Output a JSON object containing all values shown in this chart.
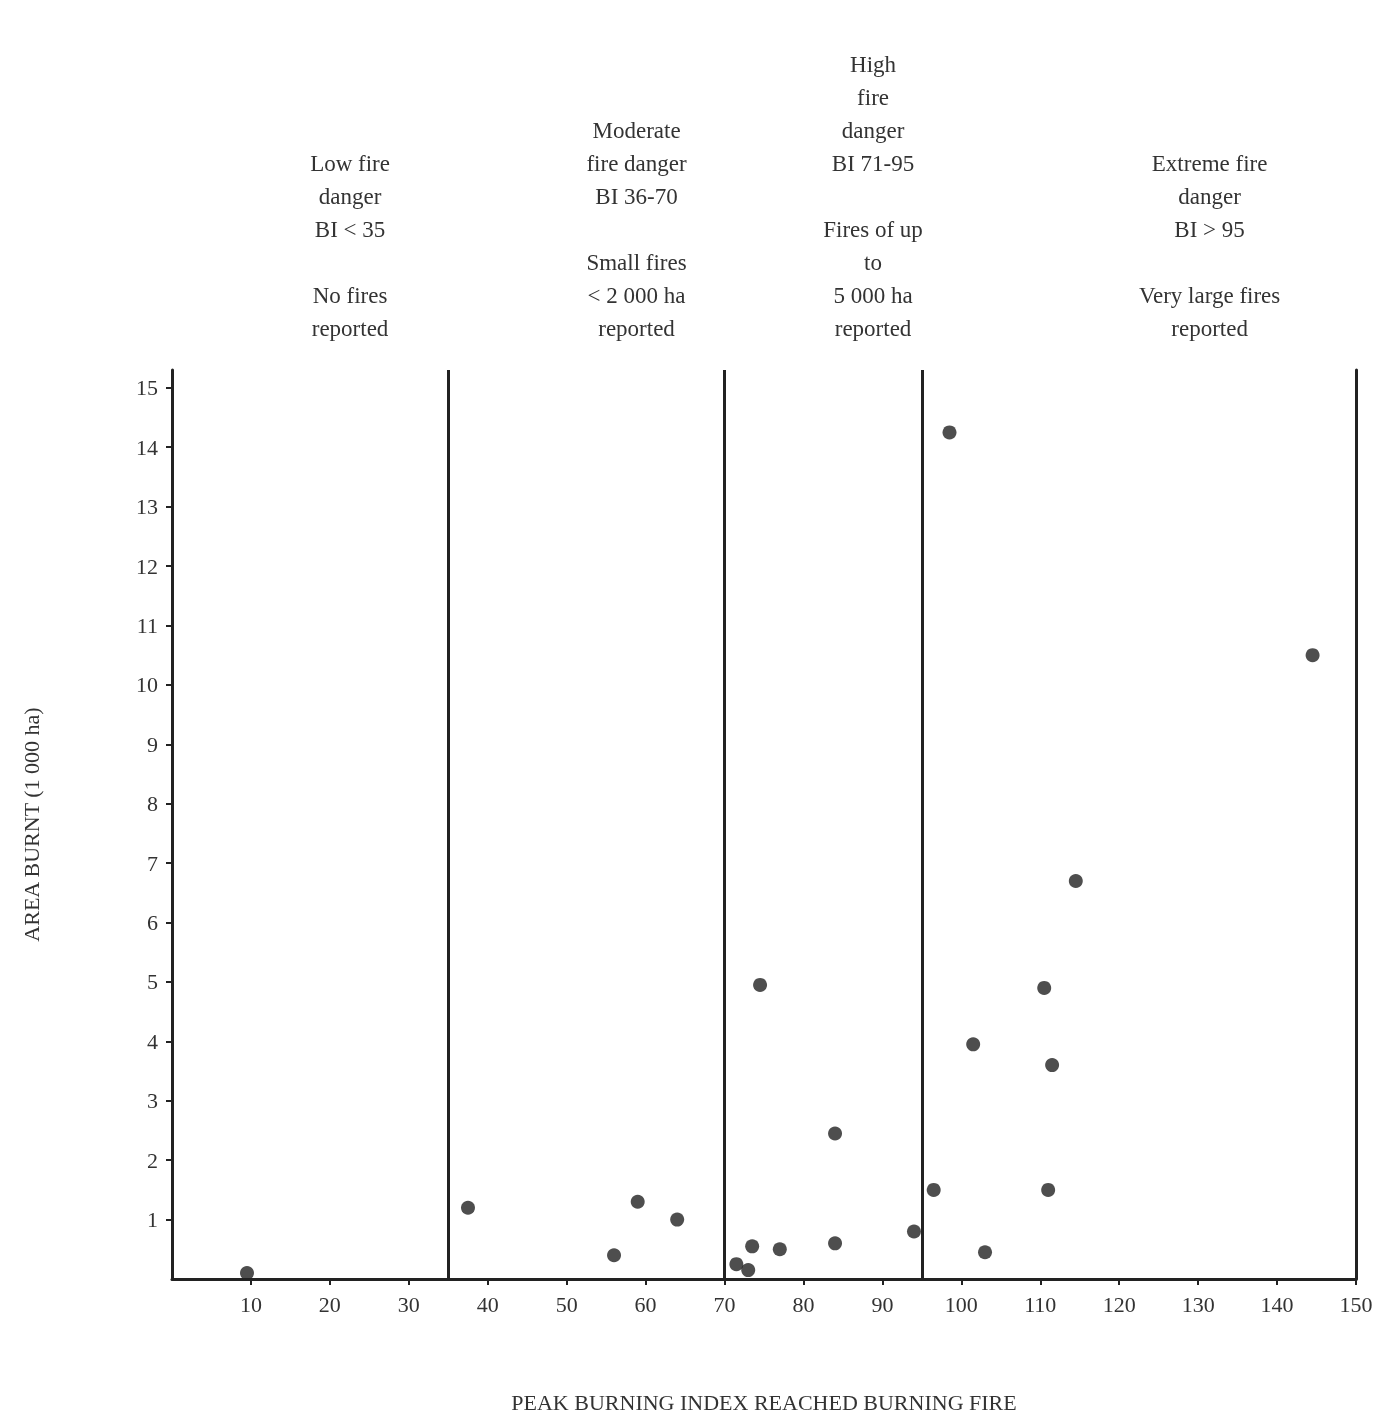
{
  "chart_data": {
    "type": "scatter",
    "xlabel": "PEAK BURNING INDEX REACHED BURNING FIRE",
    "ylabel": "AREA BURNT (1 000 ha)",
    "x": [
      9.5,
      37.5,
      56,
      59,
      64,
      71.5,
      73,
      73.5,
      74.5,
      77,
      84,
      84,
      94,
      96.5,
      98.5,
      101.5,
      103,
      110.5,
      111,
      111.5,
      114.5,
      144.5
    ],
    "values": [
      0.1,
      1.2,
      0.4,
      1.3,
      1.0,
      0.25,
      0.15,
      0.55,
      4.95,
      0.5,
      2.45,
      0.6,
      0.8,
      1.5,
      14.25,
      3.95,
      0.45,
      4.9,
      1.5,
      3.6,
      6.7,
      10.5
    ],
    "color": "#222222",
    "marker": "circle",
    "xlim": [
      0,
      150
    ],
    "xticks": [
      10,
      20,
      30,
      40,
      50,
      60,
      70,
      80,
      90,
      100,
      110,
      120,
      130,
      140,
      150
    ],
    "ylim": [
      0,
      15.3
    ],
    "yticks": [
      1,
      2,
      3,
      4,
      5,
      6,
      7,
      8,
      9,
      10,
      11,
      12,
      13,
      14,
      15
    ],
    "grid": false,
    "ref_lines": [
      {
        "axis": "x",
        "value": 35
      },
      {
        "axis": "x",
        "value": 70
      },
      {
        "axis": "x",
        "value": 95
      }
    ],
    "annotations": [
      "Low fire\ndanger\nBI < 35\n\nNo fires\nreported",
      "Moderate\nfire danger\nBI 36-70\n\nSmall fires\n< 2 000 ha\nreported",
      "High\nfire\ndanger\nBI 71-95\n\nFires of up\nto\n5 000 ha\nreported",
      "Extreme fire\ndanger\nBI > 95\n\nVery large fires\nreported"
    ]
  }
}
